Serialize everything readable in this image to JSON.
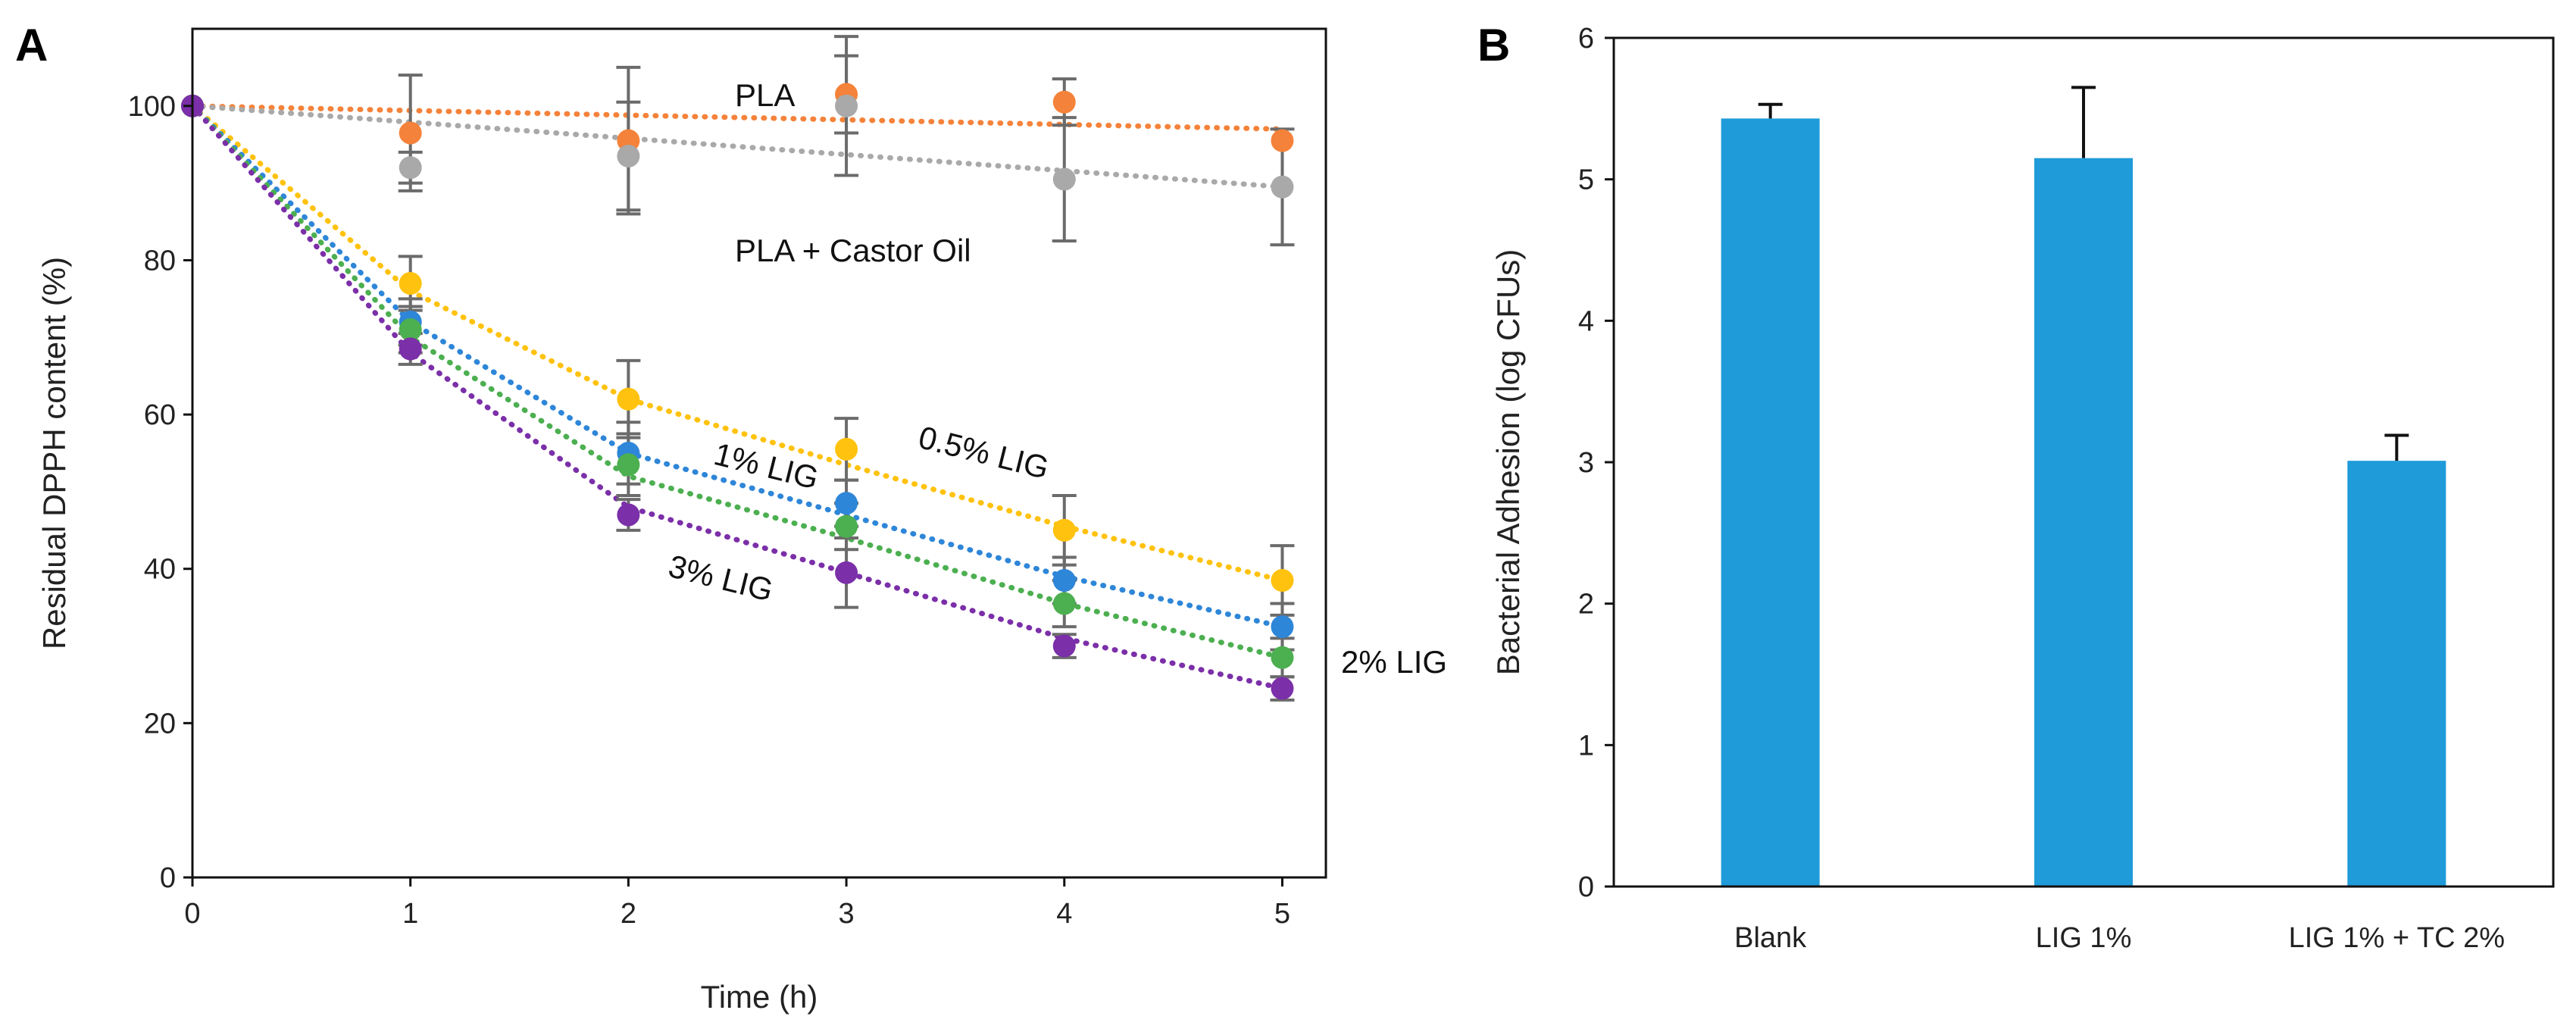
{
  "chart_data": [
    {
      "type": "line",
      "panel": "A",
      "title": "",
      "xlabel": "Time (h)",
      "ylabel": "Residual DPPH content (%)",
      "xlim": [
        0,
        5.2
      ],
      "ylim": [
        0,
        110
      ],
      "xticks": [
        0,
        1,
        2,
        3,
        4,
        5
      ],
      "yticks": [
        0,
        20,
        40,
        60,
        80,
        100
      ],
      "grid": false,
      "series": [
        {
          "name": "PLA",
          "color": "#f5823a",
          "x": [
            0,
            1,
            2,
            3,
            4,
            5
          ],
          "y": [
            100,
            96.5,
            95.5,
            101.5,
            100.5,
            95.5
          ],
          "err": [
            0,
            7.5,
            9.5,
            5,
            3,
            0
          ],
          "trend": [
            100,
            99.4,
            98.8,
            98.2,
            97.6,
            97.0
          ]
        },
        {
          "name": "PLA + Castor Oil",
          "color": "#a9a9a9",
          "x": [
            0,
            1,
            2,
            3,
            4,
            5
          ],
          "y": [
            100,
            92,
            93.5,
            100,
            90.5,
            89.5
          ],
          "err": [
            0,
            2,
            7,
            9,
            8,
            7.5
          ],
          "trend": [
            100,
            97.9,
            95.8,
            93.7,
            91.6,
            89.5
          ]
        },
        {
          "name": "0.5% LIG",
          "color": "#ffc20e",
          "x": [
            0,
            1,
            2,
            3,
            4,
            5
          ],
          "y": [
            100,
            77,
            62,
            55.5,
            45,
            38.5
          ],
          "err": [
            0,
            3.5,
            5,
            4,
            4.5,
            4.5
          ],
          "trend": [
            100,
            76,
            62,
            53.5,
            45.5,
            38.5
          ]
        },
        {
          "name": "1% LIG",
          "color": "#2e86d8",
          "x": [
            0,
            1,
            2,
            3,
            4,
            5
          ],
          "y": [
            100,
            72,
            55,
            48.5,
            38.5,
            32.5
          ],
          "err": [
            0,
            3,
            4,
            3,
            3,
            3
          ],
          "trend": [
            100,
            72,
            55,
            47,
            39,
            32.5
          ]
        },
        {
          "name": "2% LIG",
          "color": "#4caf50",
          "x": [
            0,
            1,
            2,
            3,
            4,
            5
          ],
          "y": [
            100,
            71,
            53.5,
            45.5,
            35.5,
            28.5
          ],
          "err": [
            0,
            3,
            4,
            3,
            3,
            2.5
          ],
          "trend": [
            100,
            70,
            52,
            44,
            35.5,
            28.5
          ]
        },
        {
          "name": "3% LIG",
          "color": "#7b2fa8",
          "x": [
            0,
            1,
            2,
            3,
            4,
            5
          ],
          "y": [
            100,
            68.5,
            47,
            39.5,
            30,
            24.5
          ],
          "err": [
            0,
            2,
            2,
            4.5,
            1.5,
            1.5
          ],
          "trend": [
            100,
            68,
            48,
            39.5,
            31,
            24.5
          ]
        }
      ]
    },
    {
      "type": "bar",
      "panel": "B",
      "title": "",
      "xlabel": "",
      "ylabel": "Bacterial Adhesion  (log CFUs)",
      "ylim": [
        0,
        6
      ],
      "yticks": [
        0,
        1,
        2,
        3,
        4,
        5,
        6
      ],
      "grid": false,
      "categories": [
        "Blank",
        "LIG 1%",
        "LIG 1% + TC 2%"
      ],
      "values": [
        5.43,
        5.15,
        3.01
      ],
      "err": [
        0.1,
        0.5,
        0.18
      ],
      "color": "#1f9bd9"
    }
  ],
  "labels": {
    "panel_a": "A",
    "panel_b": "B",
    "pla": "PLA",
    "pla_castor": "PLA + Castor Oil",
    "lig_05": "0.5% LIG",
    "lig_1": "1% LIG",
    "lig_2": "2% LIG",
    "lig_3": "3% LIG"
  }
}
